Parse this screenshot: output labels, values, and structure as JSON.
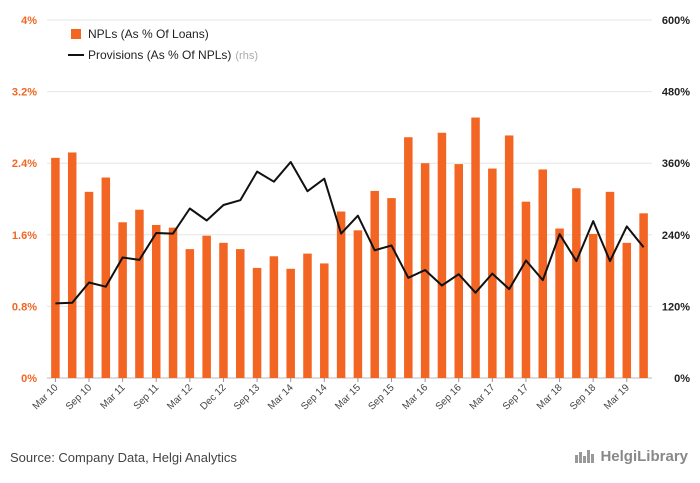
{
  "chart_data": {
    "type": "bar",
    "series": [
      {
        "name": "NPLs (As % Of Loans)",
        "axis": "left",
        "type": "bar",
        "color": "#f26522",
        "values": [
          2.46,
          2.52,
          2.08,
          2.24,
          1.74,
          1.88,
          1.71,
          1.68,
          1.44,
          1.59,
          1.51,
          1.44,
          1.23,
          1.36,
          1.22,
          1.39,
          1.28,
          1.86,
          1.65,
          2.09,
          2.01,
          2.69,
          2.4,
          2.74,
          2.39,
          2.91,
          2.34,
          2.71,
          1.97,
          2.33,
          1.67,
          2.12,
          1.61,
          2.08,
          1.51,
          1.84
        ]
      },
      {
        "name": "Provisions (As % Of NPLs)",
        "note": "(rhs)",
        "axis": "right",
        "type": "line",
        "color": "#111111",
        "values": [
          125,
          126,
          160,
          153,
          202,
          198,
          243,
          242,
          284,
          264,
          290,
          298,
          346,
          329,
          362,
          313,
          334,
          242,
          272,
          214,
          222,
          168,
          181,
          155,
          174,
          143,
          175,
          149,
          197,
          164,
          241,
          196,
          263,
          196,
          254,
          219
        ]
      }
    ],
    "tick_labels": [
      "Mar 10",
      "Sep 10",
      "Mar 11",
      "Sep 11",
      "Mar 12",
      "Dec 12",
      "Sep 13",
      "Mar 14",
      "Sep 14",
      "Mar 15",
      "Sep 15",
      "Mar 16",
      "Sep 16",
      "Mar 17",
      "Sep 17",
      "Mar 18",
      "Sep 18",
      "Mar 19"
    ],
    "y_left": {
      "min": 0,
      "max": 4,
      "ticks": [
        "0%",
        "0.8%",
        "1.6%",
        "2.4%",
        "3.2%",
        "4%"
      ],
      "tick_values": [
        0,
        0.8,
        1.6,
        2.4,
        3.2,
        4
      ]
    },
    "y_right": {
      "min": 0,
      "max": 600,
      "ticks": [
        "0%",
        "120%",
        "240%",
        "360%",
        "480%",
        "600%"
      ],
      "tick_values": [
        0,
        120,
        240,
        360,
        480,
        600
      ]
    },
    "legend": {
      "position": "top-left",
      "items": [
        "NPLs (As % Of Loans)",
        "Provisions (As % Of NPLs)"
      ],
      "note": "(rhs)"
    }
  },
  "footer": {
    "source": "Source: Company Data, Helgi Analytics"
  },
  "brand": {
    "name": "HelgiLibrary"
  },
  "colors": {
    "bar": "#f26522",
    "line": "#111111",
    "grid": "#e6e6e6"
  }
}
